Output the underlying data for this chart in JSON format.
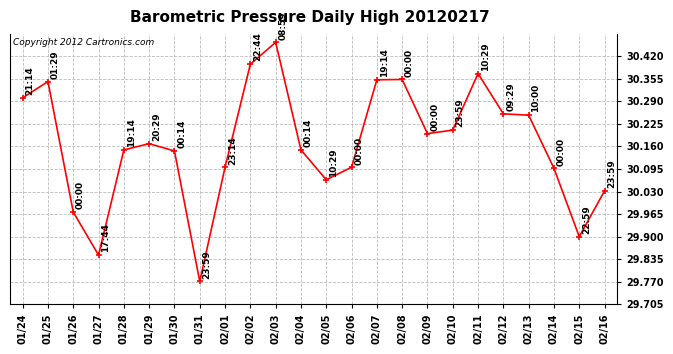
{
  "title": "Barometric Pressure Daily High 20120217",
  "copyright": "Copyright 2012 Cartronics.com",
  "x_labels": [
    "01/24",
    "01/25",
    "01/26",
    "01/27",
    "01/28",
    "01/29",
    "01/30",
    "01/31",
    "02/01",
    "02/02",
    "02/03",
    "02/04",
    "02/05",
    "02/06",
    "02/07",
    "02/08",
    "02/09",
    "02/10",
    "02/11",
    "02/12",
    "02/13",
    "02/14",
    "02/15",
    "02/16"
  ],
  "y_values": [
    30.3,
    30.347,
    29.971,
    29.847,
    30.15,
    30.168,
    30.147,
    29.771,
    30.1,
    30.397,
    30.46,
    30.15,
    30.064,
    30.1,
    30.352,
    30.353,
    30.197,
    30.207,
    30.37,
    30.254,
    30.25,
    30.097,
    29.9,
    30.032
  ],
  "annotations": [
    "21:14",
    "01:29",
    "00:00",
    "17:44",
    "19:14",
    "20:29",
    "00:14",
    "23:59",
    "23:14",
    "22:44",
    "08:59",
    "00:14",
    "10:29",
    "00:00",
    "19:14",
    "00:00",
    "00:00",
    "23:59",
    "10:29",
    "09:29",
    "10:00",
    "00:00",
    "22:59",
    "23:59"
  ],
  "line_color": "#ff0000",
  "marker_color": "#ff0000",
  "bg_color": "#ffffff",
  "grid_color": "#bbbbbb",
  "ylim_min": 29.705,
  "ylim_max": 30.483,
  "ytick_step": 0.065,
  "title_fontsize": 11,
  "axis_fontsize": 7,
  "annotation_fontsize": 6.5,
  "copyright_fontsize": 6.5
}
